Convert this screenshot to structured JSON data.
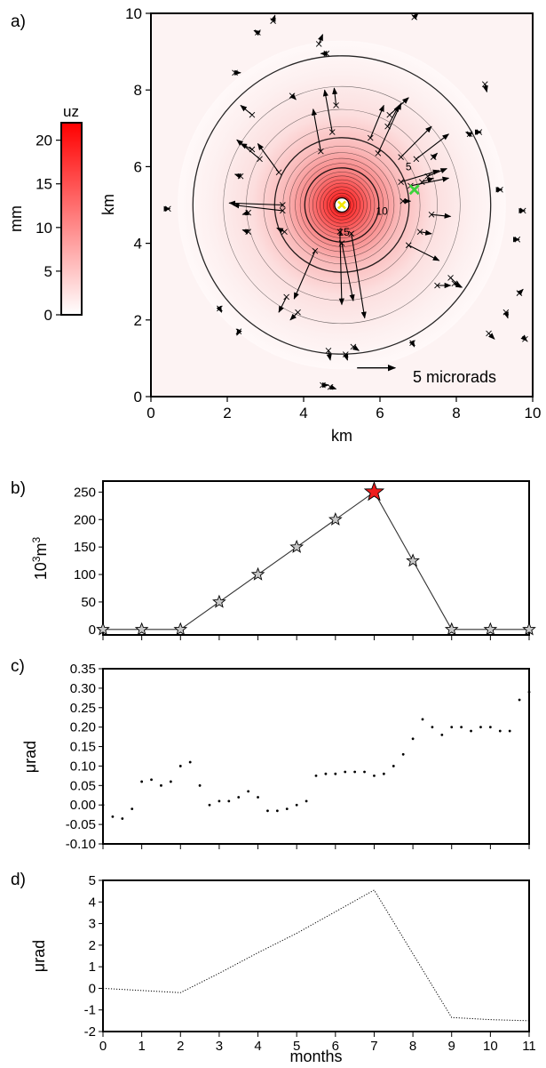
{
  "chart_data": [
    {
      "panel": "a)",
      "type": "heatmap",
      "title": "",
      "xlabel": "km",
      "ylabel": "km",
      "xlim": [
        0,
        10
      ],
      "ylim": [
        0,
        10
      ],
      "xticks": [
        0,
        2,
        4,
        6,
        8,
        10
      ],
      "yticks": [
        0,
        2,
        4,
        6,
        8,
        10
      ],
      "source": {
        "x": 5.0,
        "y": 5.0,
        "marker": "x",
        "color": "#f2e600"
      },
      "station_highlight": {
        "x": 6.9,
        "y": 5.4,
        "marker": "x",
        "color": "#3bd13b"
      },
      "contour_center": {
        "x": 5.0,
        "y": 5.0
      },
      "contour_radii_km": [
        0.15,
        0.23,
        0.31,
        0.39,
        0.48,
        0.57,
        0.66,
        0.76,
        0.86,
        0.97,
        1.09,
        1.22,
        1.37,
        1.54,
        1.76,
        2.05,
        2.5,
        3.1,
        3.9
      ],
      "contour_labels": [
        {
          "text": "5",
          "x": 6.75,
          "y": 5.9
        },
        {
          "text": "10",
          "x": 6.05,
          "y": 4.75
        },
        {
          "text": "15",
          "x": 5.05,
          "y": 4.2
        }
      ],
      "colorbar": {
        "title": "uz",
        "unit": "mm",
        "ticks": [
          0,
          5,
          10,
          15,
          20
        ],
        "range": [
          0,
          22
        ],
        "color_low": "#ffffff",
        "color_high": "#ff0000"
      },
      "scale_arrow": {
        "label": "5 microrads",
        "length_km": 1.0,
        "x": 5.4,
        "y": 0.75
      },
      "tilt_vectors": [
        {
          "x": 3.2,
          "y": 9.8,
          "dx": 0.05,
          "dy": 0.15
        },
        {
          "x": 2.8,
          "y": 9.5,
          "dx": -0.1,
          "dy": 0.05
        },
        {
          "x": 4.4,
          "y": 9.2,
          "dx": 0.1,
          "dy": 0.25
        },
        {
          "x": 4.6,
          "y": 8.95,
          "dx": -0.15,
          "dy": 0.0
        },
        {
          "x": 6.9,
          "y": 9.9,
          "dx": 0.1,
          "dy": 0.1
        },
        {
          "x": 2.2,
          "y": 8.45,
          "dx": 0.15,
          "dy": 0.0
        },
        {
          "x": 3.7,
          "y": 7.85,
          "dx": 0.1,
          "dy": -0.1
        },
        {
          "x": 8.75,
          "y": 8.15,
          "dx": 0.05,
          "dy": -0.2
        },
        {
          "x": 2.65,
          "y": 7.35,
          "dx": -0.3,
          "dy": 0.25
        },
        {
          "x": 2.65,
          "y": 6.45,
          "dx": -0.3,
          "dy": 0.15
        },
        {
          "x": 2.35,
          "y": 5.75,
          "dx": -0.15,
          "dy": 0.05
        },
        {
          "x": 2.85,
          "y": 6.2,
          "dx": -0.6,
          "dy": 0.5
        },
        {
          "x": 3.35,
          "y": 5.85,
          "dx": -0.55,
          "dy": 0.75
        },
        {
          "x": 4.45,
          "y": 6.4,
          "dx": -0.2,
          "dy": 1.1
        },
        {
          "x": 4.75,
          "y": 6.9,
          "dx": -0.2,
          "dy": 1.1
        },
        {
          "x": 4.85,
          "y": 7.6,
          "dx": -0.05,
          "dy": 0.45
        },
        {
          "x": 5.75,
          "y": 6.75,
          "dx": 0.35,
          "dy": 0.85
        },
        {
          "x": 5.95,
          "y": 6.35,
          "dx": 0.6,
          "dy": 1.3
        },
        {
          "x": 6.2,
          "y": 7.05,
          "dx": 0.3,
          "dy": 0.55
        },
        {
          "x": 6.25,
          "y": 7.35,
          "dx": 0.5,
          "dy": 0.45
        },
        {
          "x": 6.55,
          "y": 6.25,
          "dx": 0.8,
          "dy": 0.8
        },
        {
          "x": 6.95,
          "y": 6.2,
          "dx": 0.85,
          "dy": 0.65
        },
        {
          "x": 7.4,
          "y": 6.25,
          "dx": 0.1,
          "dy": 0.1
        },
        {
          "x": 6.55,
          "y": 5.6,
          "dx": 1.0,
          "dy": 0.3
        },
        {
          "x": 6.8,
          "y": 5.5,
          "dx": 1.0,
          "dy": 0.2
        },
        {
          "x": 7.1,
          "y": 5.6,
          "dx": 0.3,
          "dy": 0.1
        },
        {
          "x": 7.25,
          "y": 5.75,
          "dx": 0.5,
          "dy": 0.2
        },
        {
          "x": 7.35,
          "y": 4.75,
          "dx": 0.5,
          "dy": -0.05
        },
        {
          "x": 7.05,
          "y": 4.3,
          "dx": 0.3,
          "dy": -0.05
        },
        {
          "x": 6.75,
          "y": 3.95,
          "dx": 0.8,
          "dy": -0.4
        },
        {
          "x": 6.6,
          "y": 5.1,
          "dx": 0.2,
          "dy": 0.0
        },
        {
          "x": 3.45,
          "y": 5.0,
          "dx": -1.4,
          "dy": 0.05
        },
        {
          "x": 3.45,
          "y": 4.85,
          "dx": -1.3,
          "dy": 0.15
        },
        {
          "x": 2.55,
          "y": 4.8,
          "dx": -0.15,
          "dy": -0.05
        },
        {
          "x": 2.55,
          "y": 4.3,
          "dx": -0.15,
          "dy": 0.05
        },
        {
          "x": 3.5,
          "y": 4.3,
          "dx": -0.2,
          "dy": 0.1
        },
        {
          "x": 4.3,
          "y": 3.8,
          "dx": -0.55,
          "dy": -1.25
        },
        {
          "x": 4.95,
          "y": 4.3,
          "dx": 0.05,
          "dy": -1.9
        },
        {
          "x": 5.0,
          "y": 4.0,
          "dx": 0.3,
          "dy": -1.5
        },
        {
          "x": 5.25,
          "y": 4.25,
          "dx": 0.35,
          "dy": -2.2
        },
        {
          "x": 3.55,
          "y": 2.6,
          "dx": -0.2,
          "dy": -0.4
        },
        {
          "x": 3.85,
          "y": 2.2,
          "dx": -0.2,
          "dy": -0.2
        },
        {
          "x": 1.8,
          "y": 2.3,
          "dx": 0.05,
          "dy": -0.1
        },
        {
          "x": 2.3,
          "y": 1.7,
          "dx": -0.05,
          "dy": -0.1
        },
        {
          "x": 7.5,
          "y": 2.9,
          "dx": 0.35,
          "dy": 0.0
        },
        {
          "x": 7.95,
          "y": 2.95,
          "dx": 0.2,
          "dy": -0.1
        },
        {
          "x": 7.85,
          "y": 3.1,
          "dx": 0.25,
          "dy": -0.25
        },
        {
          "x": 5.3,
          "y": 1.3,
          "dx": 0.15,
          "dy": -0.1
        },
        {
          "x": 4.65,
          "y": 1.2,
          "dx": 0.05,
          "dy": -0.25
        },
        {
          "x": 5.1,
          "y": 1.1,
          "dx": 0.05,
          "dy": -0.15
        },
        {
          "x": 4.5,
          "y": 0.3,
          "dx": 0.15,
          "dy": 0.0
        },
        {
          "x": 4.7,
          "y": 0.25,
          "dx": 0.15,
          "dy": -0.05
        },
        {
          "x": 6.85,
          "y": 1.4,
          "dx": 0.05,
          "dy": -0.1
        },
        {
          "x": 8.85,
          "y": 1.65,
          "dx": 0.15,
          "dy": -0.15
        },
        {
          "x": 9.3,
          "y": 2.2,
          "dx": 0.05,
          "dy": -0.15
        },
        {
          "x": 9.65,
          "y": 2.7,
          "dx": 0.1,
          "dy": 0.1
        },
        {
          "x": 9.8,
          "y": 1.5,
          "dx": 0.05,
          "dy": -0.05
        },
        {
          "x": 9.6,
          "y": 4.1,
          "dx": 0.05,
          "dy": 0.0
        },
        {
          "x": 9.15,
          "y": 5.4,
          "dx": 0.05,
          "dy": 0.0
        },
        {
          "x": 9.75,
          "y": 4.85,
          "dx": 0.05,
          "dy": 0.0
        },
        {
          "x": 8.6,
          "y": 6.9,
          "dx": 0.05,
          "dy": 0.0
        },
        {
          "x": 8.35,
          "y": 6.85,
          "dx": -0.1,
          "dy": 0.05
        },
        {
          "x": 0.45,
          "y": 4.9,
          "dx": 0.05,
          "dy": 0.0
        }
      ]
    },
    {
      "panel": "b)",
      "type": "line",
      "xlabel": "",
      "ylabel_base": "10",
      "ylabel_exp1": "3",
      "ylabel_unit": "m",
      "ylabel_exp2": "3",
      "xlim": [
        0,
        11
      ],
      "ylim": [
        -10,
        270
      ],
      "yticks": [
        0,
        50,
        100,
        150,
        200,
        250
      ],
      "x": [
        0,
        1,
        2,
        3,
        4,
        5,
        6,
        7,
        8,
        9,
        10,
        11
      ],
      "values": [
        0,
        0,
        0,
        50,
        100,
        150,
        200,
        250,
        125,
        0,
        0,
        0
      ],
      "marker": "star",
      "marker_color": "#c8c8c8",
      "highlight_index": 7,
      "highlight_color": "#ee1c1c"
    },
    {
      "panel": "c)",
      "type": "scatter",
      "xlabel": "",
      "ylabel": "μrad",
      "xlim": [
        0,
        11
      ],
      "ylim": [
        -0.1,
        0.35
      ],
      "yticks": [
        -0.1,
        -0.05,
        0.0,
        0.05,
        0.1,
        0.15,
        0.2,
        0.25,
        0.3,
        0.35
      ],
      "x": [
        0.0,
        0.25,
        0.5,
        0.75,
        1.0,
        1.25,
        1.5,
        1.75,
        2.0,
        2.25,
        2.5,
        2.75,
        3.0,
        3.25,
        3.5,
        3.75,
        4.0,
        4.25,
        4.5,
        4.75,
        5.0,
        5.25,
        5.5,
        5.75,
        6.0,
        6.25,
        6.5,
        6.75,
        7.0,
        7.25,
        7.5,
        7.75,
        8.0,
        8.25,
        8.5,
        8.75,
        9.0,
        9.25,
        9.5,
        9.75,
        10.0,
        10.25,
        10.5,
        10.75,
        11.0
      ],
      "values": [
        0.0,
        -0.03,
        -0.035,
        -0.01,
        0.06,
        0.065,
        0.05,
        0.06,
        0.1,
        0.11,
        0.05,
        0.0,
        0.01,
        0.01,
        0.02,
        0.035,
        0.02,
        -0.015,
        -0.015,
        -0.01,
        0.0,
        0.01,
        0.075,
        0.08,
        0.08,
        0.085,
        0.085,
        0.085,
        0.075,
        0.08,
        0.1,
        0.13,
        0.17,
        0.22,
        0.2,
        0.18,
        0.2,
        0.2,
        0.19,
        0.2,
        0.2,
        0.19,
        0.19,
        0.27,
        0.29
      ]
    },
    {
      "panel": "d)",
      "type": "line",
      "xlabel": "months",
      "ylabel": "μrad",
      "xlim": [
        0,
        11
      ],
      "ylim": [
        -2,
        5
      ],
      "yticks": [
        -2,
        -1,
        0,
        1,
        2,
        3,
        4,
        5
      ],
      "xticks": [
        0,
        1,
        2,
        3,
        4,
        5,
        6,
        7,
        8,
        9,
        10,
        11
      ],
      "x": [
        0,
        1,
        2,
        3,
        4,
        5,
        6,
        7,
        8,
        9,
        10,
        11
      ],
      "values": [
        0.0,
        -0.1,
        -0.2,
        0.7,
        1.65,
        2.55,
        3.55,
        4.55,
        1.6,
        -1.35,
        -1.45,
        -1.5
      ]
    }
  ]
}
